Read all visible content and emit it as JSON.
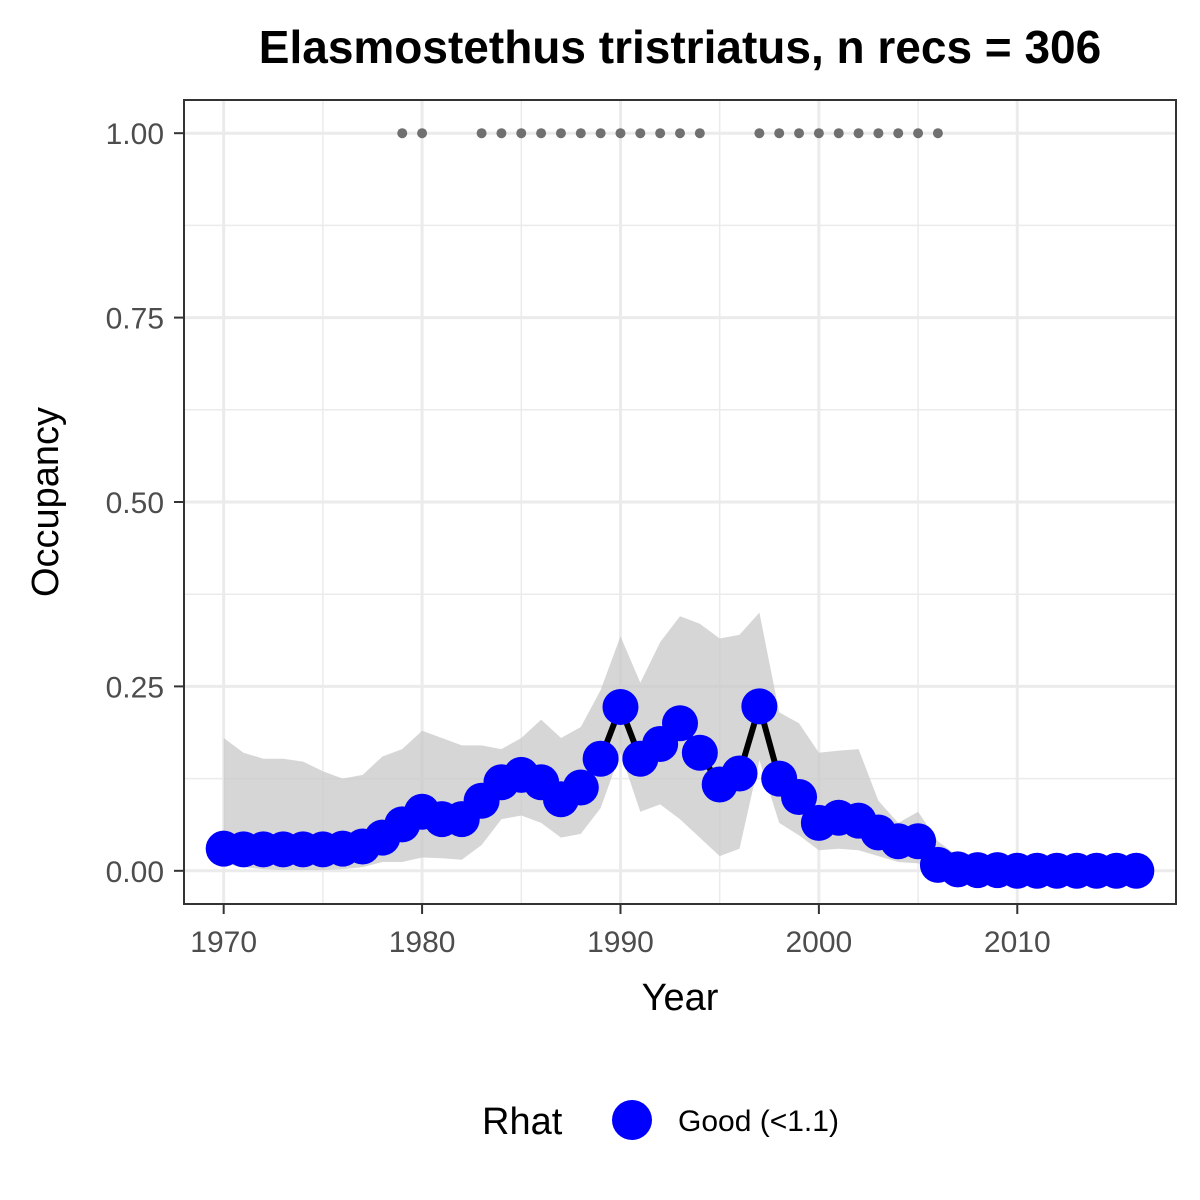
{
  "chart_data": {
    "type": "line",
    "title": "Elasmostethus tristriatus, n recs = 306",
    "xlabel": "Year",
    "ylabel": "Occupancy",
    "xlim": [
      1968,
      2018
    ],
    "ylim": [
      -0.045,
      1.045
    ],
    "x_ticks": [
      1970,
      1980,
      1990,
      2000,
      2010
    ],
    "x_tick_labels": [
      "1970",
      "1980",
      "1990",
      "2000",
      "2010"
    ],
    "y_ticks": [
      0,
      0.25,
      0.5,
      0.75,
      1.0
    ],
    "y_tick_labels": [
      "0.00",
      "0.25",
      "0.50",
      "0.75",
      "1.00"
    ],
    "grid": true,
    "legend_position": "bottom",
    "legend": {
      "title": "Rhat",
      "label": "Good (<1.1)"
    },
    "colors": {
      "point": "#0000ff",
      "line": "#000000",
      "ribbon": "#c8c8c8",
      "record_dots": "#707070",
      "grid": "#ebebeb",
      "panel_border": "#333333"
    },
    "years": [
      1970,
      1971,
      1972,
      1973,
      1974,
      1975,
      1976,
      1977,
      1978,
      1979,
      1980,
      1981,
      1982,
      1983,
      1984,
      1985,
      1986,
      1987,
      1988,
      1989,
      1990,
      1991,
      1992,
      1993,
      1994,
      1995,
      1996,
      1997,
      1998,
      1999,
      2000,
      2001,
      2002,
      2003,
      2004,
      2005,
      2006,
      2007,
      2008,
      2009,
      2010,
      2011,
      2012,
      2013,
      2014,
      2015,
      2016
    ],
    "series": [
      {
        "values": [
          0.03,
          0.029,
          0.029,
          0.029,
          0.029,
          0.029,
          0.03,
          0.033,
          0.045,
          0.063,
          0.08,
          0.07,
          0.07,
          0.095,
          0.12,
          0.13,
          0.12,
          0.097,
          0.113,
          0.152,
          0.222,
          0.152,
          0.172,
          0.2,
          0.16,
          0.117,
          0.132,
          0.223,
          0.125,
          0.1,
          0.065,
          0.072,
          0.068,
          0.052,
          0.04,
          0.04,
          0.008,
          0.002,
          0.001,
          0.001,
          0.0,
          0.0,
          0.0,
          0.0,
          0.0,
          0.0,
          0.0
        ]
      }
    ],
    "ci_lower": [
      0.01,
      0.005,
      0.002,
      0.001,
      0.001,
      0.001,
      0.002,
      0.005,
      0.012,
      0.012,
      0.018,
      0.017,
      0.015,
      0.035,
      0.07,
      0.075,
      0.065,
      0.045,
      0.05,
      0.085,
      0.16,
      0.08,
      0.09,
      0.07,
      0.045,
      0.02,
      0.03,
      0.15,
      0.065,
      0.048,
      0.028,
      0.03,
      0.028,
      0.02,
      0.012,
      0.01,
      0.0,
      0.0,
      0.0,
      0.0,
      0.0,
      0.0,
      0.0,
      0.0,
      0.0,
      0.0,
      0.0
    ],
    "ci_upper": [
      0.18,
      0.16,
      0.152,
      0.152,
      0.148,
      0.135,
      0.125,
      0.13,
      0.155,
      0.165,
      0.19,
      0.18,
      0.17,
      0.17,
      0.165,
      0.18,
      0.205,
      0.18,
      0.195,
      0.245,
      0.318,
      0.255,
      0.31,
      0.345,
      0.335,
      0.315,
      0.32,
      0.35,
      0.215,
      0.2,
      0.16,
      0.163,
      0.165,
      0.095,
      0.065,
      0.08,
      0.04,
      0.02,
      0.012,
      0.01,
      0.008,
      0.006,
      0.005,
      0.004,
      0.003,
      0.003,
      0.003
    ],
    "record_years": [
      1979,
      1980,
      1983,
      1984,
      1985,
      1986,
      1987,
      1988,
      1989,
      1990,
      1991,
      1992,
      1993,
      1994,
      1997,
      1998,
      1999,
      2000,
      2001,
      2002,
      2003,
      2004,
      2005,
      2006
    ],
    "record_y": 1.0
  }
}
